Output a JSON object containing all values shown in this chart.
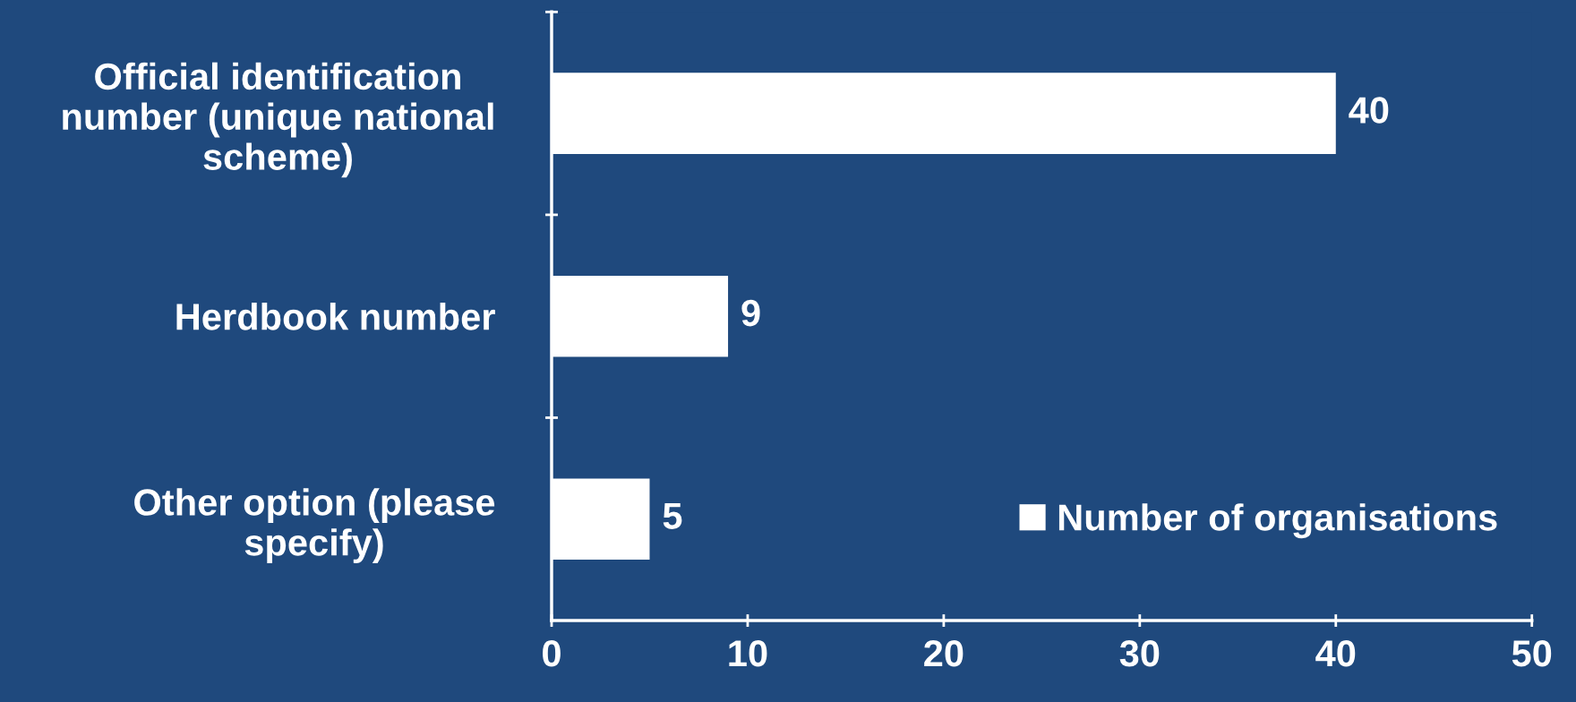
{
  "chart_data": {
    "type": "bar",
    "orientation": "horizontal",
    "categories": [
      "Official identification number (unique national scheme)",
      "Herdbook number",
      "Other option (please specify)"
    ],
    "series": [
      {
        "name": "Number of organisations",
        "color": "#ffffff",
        "values": [
          40,
          9,
          5
        ]
      }
    ],
    "xlim": [
      0,
      50
    ],
    "xticks": [
      0,
      10,
      20,
      30,
      40,
      50
    ],
    "data_labels": true,
    "legend": "bottom right",
    "grid": false
  }
}
